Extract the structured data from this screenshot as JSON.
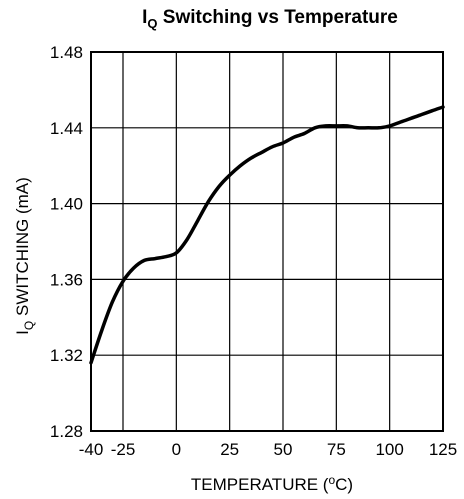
{
  "chart_data": {
    "type": "line",
    "title": {
      "prefix": "I",
      "subscript": "Q",
      "rest": " Switching vs Temperature"
    },
    "xlabel": {
      "before": "TEMPERATURE (",
      "superscript": "o",
      "after": "C)"
    },
    "ylabel": {
      "prefix": "I",
      "subscript": "Q",
      "rest": " SWITCHING (mA)"
    },
    "xlim": [
      -40,
      125
    ],
    "ylim": [
      1.28,
      1.48
    ],
    "x_ticks": [
      -40,
      -25,
      0,
      25,
      50,
      75,
      100,
      125
    ],
    "x_tick_labels": [
      "-40",
      "-25",
      "0",
      "25",
      "50",
      "75",
      "100",
      "125"
    ],
    "y_ticks": [
      1.28,
      1.32,
      1.36,
      1.4,
      1.44,
      1.48
    ],
    "y_tick_labels": [
      "1.28",
      "1.32",
      "1.36",
      "1.40",
      "1.44",
      "1.48"
    ],
    "grid": true,
    "legend": "none",
    "line_color": "#000000",
    "series": [
      {
        "x": [
          -40,
          -35,
          -30,
          -25,
          -20,
          -15,
          -10,
          -5,
          0,
          5,
          10,
          15,
          20,
          25,
          30,
          35,
          40,
          45,
          50,
          55,
          60,
          65,
          70,
          75,
          80,
          85,
          90,
          95,
          100,
          105,
          110,
          115,
          120,
          125
        ],
        "values": [
          1.316,
          1.333,
          1.348,
          1.359,
          1.366,
          1.37,
          1.371,
          1.372,
          1.374,
          1.381,
          1.391,
          1.401,
          1.409,
          1.415,
          1.42,
          1.424,
          1.427,
          1.43,
          1.432,
          1.435,
          1.437,
          1.44,
          1.441,
          1.441,
          1.441,
          1.44,
          1.44,
          1.44,
          1.441,
          1.443,
          1.445,
          1.447,
          1.449,
          1.451
        ]
      }
    ]
  }
}
